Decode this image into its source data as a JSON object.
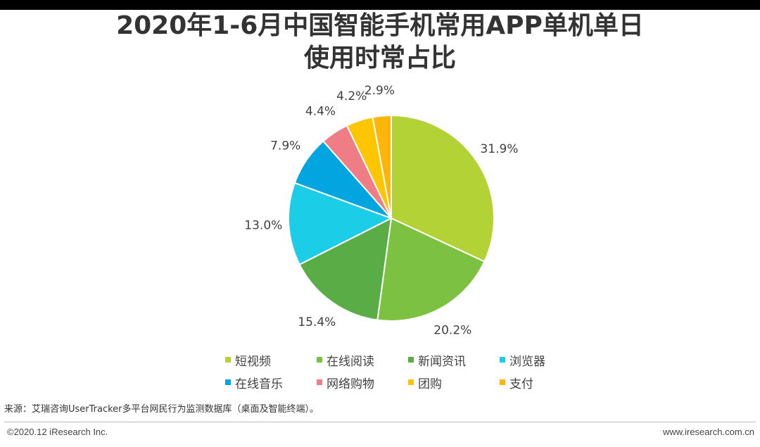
{
  "title_lines": [
    "2020年1-6月中国智能手机常用APP单机单日",
    "使用时常占比"
  ],
  "chart_data": {
    "type": "pie",
    "title": "2020年1-6月中国智能手机常用APP单机单日使用时常占比",
    "categories": [
      "短视频",
      "在线阅读",
      "新闻资讯",
      "浏览器",
      "在线音乐",
      "网络购物",
      "团购",
      "支付"
    ],
    "values": [
      31.9,
      20.2,
      15.4,
      13.0,
      7.9,
      4.4,
      4.2,
      2.9
    ],
    "labels": [
      "31.9%",
      "20.2%",
      "15.4%",
      "13.0%",
      "7.9%",
      "4.4%",
      "4.2%",
      "2.9%"
    ],
    "colors": [
      "#b2d235",
      "#7dc142",
      "#5aad46",
      "#1ccde8",
      "#02a5e0",
      "#ef7d86",
      "#fec602",
      "#fdb50a"
    ],
    "start": "12 o'clock, clockwise",
    "legend_position": "bottom"
  },
  "legend": [
    {
      "label": "短视频",
      "color": "#b2d235"
    },
    {
      "label": "在线阅读",
      "color": "#7dc142"
    },
    {
      "label": "新闻资讯",
      "color": "#5aad46"
    },
    {
      "label": "浏览器",
      "color": "#1ccde8"
    },
    {
      "label": "在线音乐",
      "color": "#02a5e0"
    },
    {
      "label": "网络购物",
      "color": "#ef7d86"
    },
    {
      "label": "团购",
      "color": "#fec602"
    },
    {
      "label": "支付",
      "color": "#fdb50a"
    }
  ],
  "footer": {
    "source": "来源：艾瑞咨询UserTracker多平台网民行为监测数据库（桌面及智能终端）。",
    "copyright": "©2020.12 iResearch Inc.",
    "website": "www.iresearch.com.cn"
  }
}
